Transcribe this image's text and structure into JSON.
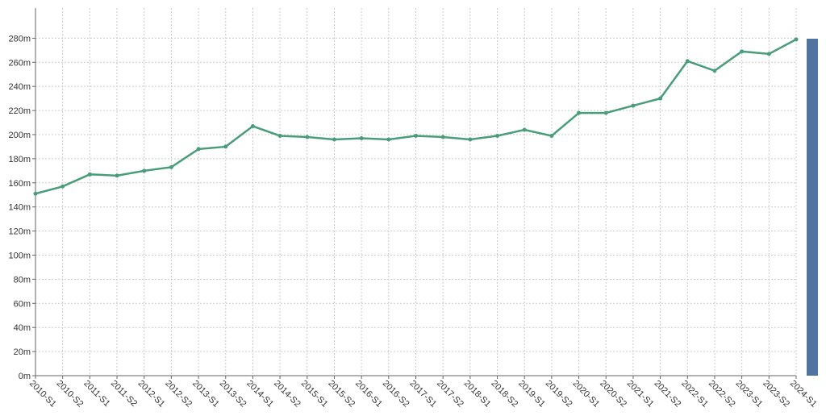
{
  "chart_data": {
    "type": "line",
    "categories": [
      "2010-S1",
      "2010-S2",
      "2011-S1",
      "2011-S2",
      "2012-S1",
      "2012-S2",
      "2013-S1",
      "2013-S2",
      "2014-S1",
      "2014-S2",
      "2015-S1",
      "2015-S2",
      "2016-S1",
      "2016-S2",
      "2017-S1",
      "2017-S2",
      "2018-S1",
      "2018-S2",
      "2019-S1",
      "2019-S2",
      "2020-S1",
      "2020-S2",
      "2021-S1",
      "2021-S2",
      "2022-S1",
      "2022-S2",
      "2023-S1",
      "2023-S2",
      "2024-S1"
    ],
    "series": [
      {
        "color": "#4a9d7a",
        "values": [
          151,
          157,
          167,
          166,
          170,
          173,
          188,
          190,
          207,
          199,
          198,
          196,
          197,
          196,
          199,
          198,
          196,
          199,
          204,
          199,
          218,
          218,
          224,
          230,
          261,
          253,
          269,
          267,
          279
        ]
      }
    ],
    "ylim": [
      0,
      305
    ],
    "yticks": [
      {
        "value": 0,
        "label": "0m"
      },
      {
        "value": 20,
        "label": "20m"
      },
      {
        "value": 40,
        "label": "40m"
      },
      {
        "value": 60,
        "label": "60m"
      },
      {
        "value": 80,
        "label": "80m"
      },
      {
        "value": 100,
        "label": "100m"
      },
      {
        "value": 120,
        "label": "120m"
      },
      {
        "value": 140,
        "label": "140m"
      },
      {
        "value": 160,
        "label": "160m"
      },
      {
        "value": 180,
        "label": "180m"
      },
      {
        "value": 200,
        "label": "200m"
      },
      {
        "value": 220,
        "label": "220m"
      },
      {
        "value": 240,
        "label": "240m"
      },
      {
        "value": 260,
        "label": "260m"
      },
      {
        "value": 280,
        "label": "280m"
      }
    ],
    "grid": true
  }
}
